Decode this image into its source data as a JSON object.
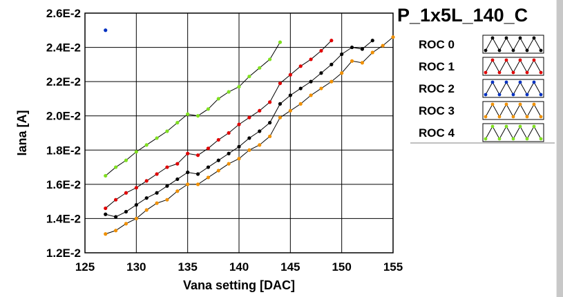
{
  "chart_data": {
    "type": "scatter",
    "title": "P_1x5L_140_C",
    "xlabel": "Vana setting [DAC]",
    "ylabel": "Iana [A]",
    "xlim": [
      125,
      155
    ],
    "ylim": [
      0.012,
      0.026
    ],
    "xticks": [
      125,
      130,
      135,
      140,
      145,
      150,
      155
    ],
    "xtick_labels": [
      "125",
      "130",
      "135",
      "140",
      "145",
      "150",
      "155"
    ],
    "yticks": [
      0.012,
      0.014,
      0.016,
      0.018,
      0.02,
      0.022,
      0.024,
      0.026
    ],
    "ytick_labels": [
      "1.2E-2",
      "1.4E-2",
      "1.6E-2",
      "1.8E-2",
      "2.0E-2",
      "2.2E-2",
      "2.4E-2",
      "2.6E-2"
    ],
    "grid": true,
    "legend_position": "right",
    "series": [
      {
        "name": "ROC 0",
        "color": "#000000",
        "x": [
          127,
          128,
          129,
          130,
          131,
          132,
          133,
          134,
          135,
          136,
          137,
          138,
          139,
          140,
          141,
          142,
          143,
          144,
          145,
          146,
          147,
          148,
          149,
          150,
          151,
          152,
          153
        ],
        "y": [
          0.01425,
          0.0141,
          0.0144,
          0.0148,
          0.0152,
          0.0155,
          0.0159,
          0.0163,
          0.0167,
          0.0166,
          0.017,
          0.0174,
          0.0178,
          0.0182,
          0.0187,
          0.0191,
          0.0196,
          0.0207,
          0.0212,
          0.0216,
          0.022,
          0.0225,
          0.023,
          0.0236,
          0.024,
          0.0239,
          0.0244
        ]
      },
      {
        "name": "ROC 1",
        "color": "#e00000",
        "x": [
          127,
          128,
          129,
          130,
          131,
          132,
          133,
          134,
          135,
          136,
          137,
          138,
          139,
          140,
          141,
          142,
          143,
          144,
          145,
          146,
          147,
          148,
          149
        ],
        "y": [
          0.0146,
          0.0151,
          0.0155,
          0.0158,
          0.0162,
          0.0166,
          0.017,
          0.0172,
          0.0178,
          0.0177,
          0.0181,
          0.0186,
          0.019,
          0.0195,
          0.0199,
          0.0203,
          0.0208,
          0.0219,
          0.0224,
          0.0229,
          0.0233,
          0.0238,
          0.0244
        ]
      },
      {
        "name": "ROC 2",
        "color": "#0030c0",
        "x": [
          127
        ],
        "y": [
          0.025
        ]
      },
      {
        "name": "ROC 3",
        "color": "#f09000",
        "x": [
          127,
          128,
          129,
          130,
          131,
          132,
          133,
          134,
          135,
          136,
          137,
          138,
          139,
          140,
          141,
          142,
          143,
          144,
          145,
          146,
          147,
          148,
          149,
          150,
          151,
          152,
          153,
          154,
          155
        ],
        "y": [
          0.0131,
          0.0133,
          0.0137,
          0.014,
          0.0145,
          0.0149,
          0.0151,
          0.0156,
          0.016,
          0.016,
          0.0164,
          0.0168,
          0.0172,
          0.0175,
          0.018,
          0.0183,
          0.0188,
          0.0199,
          0.0203,
          0.0207,
          0.0212,
          0.0216,
          0.022,
          0.0225,
          0.0232,
          0.0231,
          0.0237,
          0.0241,
          0.0246
        ]
      },
      {
        "name": "ROC 4",
        "color": "#80e020",
        "x": [
          127,
          128,
          129,
          130,
          131,
          132,
          133,
          134,
          135,
          136,
          137,
          138,
          139,
          140,
          141,
          142,
          143,
          144
        ],
        "y": [
          0.0165,
          0.017,
          0.0174,
          0.0179,
          0.0183,
          0.0187,
          0.0191,
          0.0196,
          0.0201,
          0.02,
          0.0204,
          0.021,
          0.0214,
          0.0217,
          0.0223,
          0.0228,
          0.0233,
          0.0243
        ]
      }
    ]
  }
}
